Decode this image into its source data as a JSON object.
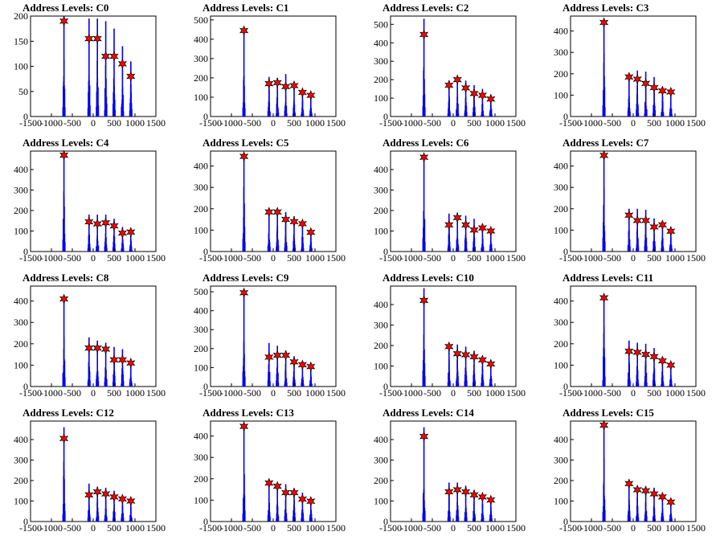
{
  "chart_data": [
    {
      "type": "bar",
      "title": "Address Levels: C0",
      "xlim": [
        -1500,
        1500
      ],
      "ylim": [
        0,
        200
      ],
      "xticks": [
        -1500,
        -1000,
        -500,
        0,
        500,
        1000,
        1500
      ],
      "yticks": [
        0,
        50,
        100,
        150,
        200
      ],
      "x": [
        -700,
        -100,
        100,
        300,
        500,
        700,
        900
      ],
      "values": [
        190,
        155,
        155,
        120,
        120,
        105,
        80
      ],
      "spikes": [
        {
          "x": -700,
          "y": 200
        },
        {
          "x": -100,
          "y": 195
        },
        {
          "x": 100,
          "y": 195
        },
        {
          "x": 300,
          "y": 190
        },
        {
          "x": 500,
          "y": 175
        },
        {
          "x": 700,
          "y": 140
        },
        {
          "x": 900,
          "y": 110
        }
      ]
    },
    {
      "type": "bar",
      "title": "Address Levels: C1",
      "xlim": [
        -1500,
        1500
      ],
      "ylim": [
        0,
        520
      ],
      "xticks": [
        -1500,
        -1000,
        -500,
        0,
        500,
        1000,
        1500
      ],
      "yticks": [
        0,
        100,
        200,
        300,
        400,
        500
      ],
      "x": [
        -700,
        -100,
        100,
        300,
        500,
        700,
        900
      ],
      "values": [
        445,
        170,
        175,
        155,
        160,
        125,
        110
      ],
      "spikes": [
        {
          "x": -700,
          "y": 460
        },
        {
          "x": -100,
          "y": 205
        },
        {
          "x": 100,
          "y": 200
        },
        {
          "x": 300,
          "y": 220
        },
        {
          "x": 500,
          "y": 165
        },
        {
          "x": 700,
          "y": 135
        },
        {
          "x": 900,
          "y": 120
        }
      ]
    },
    {
      "type": "bar",
      "title": "Address Levels: C2",
      "xlim": [
        -1500,
        1500
      ],
      "ylim": [
        0,
        545
      ],
      "xticks": [
        -1500,
        -1000,
        -500,
        0,
        500,
        1000,
        1500
      ],
      "yticks": [
        0,
        100,
        200,
        300,
        400,
        500
      ],
      "x": [
        -700,
        -100,
        100,
        300,
        500,
        700,
        900
      ],
      "values": [
        445,
        170,
        200,
        155,
        125,
        115,
        95
      ],
      "spikes": [
        {
          "x": -700,
          "y": 530
        },
        {
          "x": -100,
          "y": 195
        },
        {
          "x": 100,
          "y": 215
        },
        {
          "x": 300,
          "y": 195
        },
        {
          "x": 500,
          "y": 170
        },
        {
          "x": 700,
          "y": 150
        },
        {
          "x": 900,
          "y": 120
        }
      ]
    },
    {
      "type": "bar",
      "title": "Address Levels: C3",
      "xlim": [
        -1500,
        1500
      ],
      "ylim": [
        0,
        470
      ],
      "xticks": [
        -1500,
        -1000,
        -500,
        0,
        500,
        1000,
        1500
      ],
      "yticks": [
        0,
        100,
        200,
        300,
        400
      ],
      "x": [
        -700,
        -100,
        100,
        300,
        500,
        700,
        900
      ],
      "values": [
        440,
        185,
        175,
        155,
        135,
        120,
        115
      ],
      "spikes": [
        {
          "x": -700,
          "y": 450
        },
        {
          "x": -100,
          "y": 200
        },
        {
          "x": 100,
          "y": 215
        },
        {
          "x": 300,
          "y": 210
        },
        {
          "x": 500,
          "y": 185
        },
        {
          "x": 700,
          "y": 140
        },
        {
          "x": 900,
          "y": 130
        }
      ]
    },
    {
      "type": "bar",
      "title": "Address Levels: C4",
      "xlim": [
        -1500,
        1500
      ],
      "ylim": [
        0,
        490
      ],
      "xticks": [
        -1500,
        -1000,
        -500,
        0,
        500,
        1000,
        1500
      ],
      "yticks": [
        0,
        100,
        200,
        300,
        400
      ],
      "x": [
        -700,
        -100,
        100,
        300,
        500,
        700,
        900
      ],
      "values": [
        470,
        145,
        135,
        140,
        125,
        90,
        95
      ],
      "spikes": [
        {
          "x": -700,
          "y": 480
        },
        {
          "x": -100,
          "y": 180
        },
        {
          "x": 100,
          "y": 180
        },
        {
          "x": 300,
          "y": 180
        },
        {
          "x": 500,
          "y": 160
        },
        {
          "x": 700,
          "y": 120
        },
        {
          "x": 900,
          "y": 110
        }
      ]
    },
    {
      "type": "bar",
      "title": "Address Levels: C5",
      "xlim": [
        -1500,
        1500
      ],
      "ylim": [
        0,
        470
      ],
      "xticks": [
        -1500,
        -1000,
        -500,
        0,
        500,
        1000,
        1500
      ],
      "yticks": [
        0,
        100,
        200,
        300,
        400
      ],
      "x": [
        -700,
        -100,
        100,
        300,
        500,
        700,
        900
      ],
      "values": [
        445,
        185,
        185,
        150,
        140,
        130,
        90
      ],
      "spikes": [
        {
          "x": -700,
          "y": 455
        },
        {
          "x": -100,
          "y": 190
        },
        {
          "x": 100,
          "y": 195
        },
        {
          "x": 300,
          "y": 185
        },
        {
          "x": 500,
          "y": 165
        },
        {
          "x": 700,
          "y": 145
        },
        {
          "x": 900,
          "y": 105
        }
      ]
    },
    {
      "type": "bar",
      "title": "Address Levels: C6",
      "xlim": [
        -1500,
        1500
      ],
      "ylim": [
        0,
        490
      ],
      "xticks": [
        -1500,
        -1000,
        -500,
        0,
        500,
        1000,
        1500
      ],
      "yticks": [
        0,
        100,
        200,
        300,
        400
      ],
      "x": [
        -700,
        -100,
        100,
        300,
        500,
        700,
        900
      ],
      "values": [
        460,
        130,
        165,
        130,
        105,
        115,
        100
      ],
      "spikes": [
        {
          "x": -700,
          "y": 475
        },
        {
          "x": -100,
          "y": 185
        },
        {
          "x": 100,
          "y": 190
        },
        {
          "x": 300,
          "y": 175
        },
        {
          "x": 500,
          "y": 160
        },
        {
          "x": 700,
          "y": 135
        },
        {
          "x": 900,
          "y": 115
        }
      ]
    },
    {
      "type": "bar",
      "title": "Address Levels: C7",
      "xlim": [
        -1500,
        1500
      ],
      "ylim": [
        0,
        470
      ],
      "xticks": [
        -1500,
        -1000,
        -500,
        0,
        500,
        1000,
        1500
      ],
      "yticks": [
        0,
        100,
        200,
        300,
        400
      ],
      "x": [
        -700,
        -100,
        100,
        300,
        500,
        700,
        900
      ],
      "values": [
        450,
        170,
        145,
        145,
        115,
        125,
        95
      ],
      "spikes": [
        {
          "x": -700,
          "y": 455
        },
        {
          "x": -100,
          "y": 200
        },
        {
          "x": 100,
          "y": 200
        },
        {
          "x": 300,
          "y": 195
        },
        {
          "x": 500,
          "y": 155
        },
        {
          "x": 700,
          "y": 145
        },
        {
          "x": 900,
          "y": 115
        }
      ]
    },
    {
      "type": "bar",
      "title": "Address Levels: C8",
      "xlim": [
        -1500,
        1500
      ],
      "ylim": [
        0,
        470
      ],
      "xticks": [
        -1500,
        -1000,
        -500,
        0,
        500,
        1000,
        1500
      ],
      "yticks": [
        0,
        100,
        200,
        300,
        400
      ],
      "x": [
        -700,
        -100,
        100,
        300,
        500,
        700,
        900
      ],
      "values": [
        410,
        180,
        180,
        175,
        125,
        125,
        110
      ],
      "spikes": [
        {
          "x": -700,
          "y": 420
        },
        {
          "x": -100,
          "y": 230
        },
        {
          "x": 100,
          "y": 215
        },
        {
          "x": 300,
          "y": 205
        },
        {
          "x": 500,
          "y": 185
        },
        {
          "x": 700,
          "y": 175
        },
        {
          "x": 900,
          "y": 130
        }
      ]
    },
    {
      "type": "bar",
      "title": "Address Levels: C9",
      "xlim": [
        -1500,
        1500
      ],
      "ylim": [
        0,
        530
      ],
      "xticks": [
        -1500,
        -1000,
        -500,
        0,
        500,
        1000,
        1500
      ],
      "yticks": [
        0,
        100,
        200,
        300,
        400,
        500
      ],
      "x": [
        -700,
        -100,
        100,
        300,
        500,
        700,
        900
      ],
      "values": [
        495,
        155,
        165,
        165,
        130,
        115,
        105
      ],
      "spikes": [
        {
          "x": -700,
          "y": 505
        },
        {
          "x": -100,
          "y": 230
        },
        {
          "x": 100,
          "y": 215
        },
        {
          "x": 300,
          "y": 190
        },
        {
          "x": 500,
          "y": 160
        },
        {
          "x": 700,
          "y": 130
        },
        {
          "x": 900,
          "y": 115
        }
      ]
    },
    {
      "type": "bar",
      "title": "Address Levels: C10",
      "xlim": [
        -1500,
        1500
      ],
      "ylim": [
        0,
        490
      ],
      "xticks": [
        -1500,
        -1000,
        -500,
        0,
        500,
        1000,
        1500
      ],
      "yticks": [
        0,
        100,
        200,
        300,
        400
      ],
      "x": [
        -700,
        -100,
        100,
        300,
        500,
        700,
        900
      ],
      "values": [
        420,
        195,
        160,
        155,
        145,
        130,
        110
      ],
      "spikes": [
        {
          "x": -700,
          "y": 480
        },
        {
          "x": -100,
          "y": 210
        },
        {
          "x": 100,
          "y": 205
        },
        {
          "x": 300,
          "y": 195
        },
        {
          "x": 500,
          "y": 175
        },
        {
          "x": 700,
          "y": 150
        },
        {
          "x": 900,
          "y": 130
        }
      ]
    },
    {
      "type": "bar",
      "title": "Address Levels: C11",
      "xlim": [
        -1500,
        1500
      ],
      "ylim": [
        0,
        470
      ],
      "xticks": [
        -1500,
        -1000,
        -500,
        0,
        500,
        1000,
        1500
      ],
      "yticks": [
        0,
        100,
        200,
        300,
        400
      ],
      "x": [
        -700,
        -100,
        100,
        300,
        500,
        700,
        900
      ],
      "values": [
        415,
        165,
        160,
        150,
        140,
        120,
        100
      ],
      "spikes": [
        {
          "x": -700,
          "y": 430
        },
        {
          "x": -100,
          "y": 215
        },
        {
          "x": 100,
          "y": 205
        },
        {
          "x": 300,
          "y": 200
        },
        {
          "x": 500,
          "y": 180
        },
        {
          "x": 700,
          "y": 140
        },
        {
          "x": 900,
          "y": 115
        }
      ]
    },
    {
      "type": "bar",
      "title": "Address Levels: C12",
      "xlim": [
        -1500,
        1500
      ],
      "ylim": [
        0,
        490
      ],
      "xticks": [
        -1500,
        -1000,
        -500,
        0,
        500,
        1000,
        1500
      ],
      "yticks": [
        0,
        100,
        200,
        300,
        400
      ],
      "x": [
        -700,
        -100,
        100,
        300,
        500,
        700,
        900
      ],
      "values": [
        405,
        130,
        145,
        135,
        120,
        110,
        100
      ],
      "spikes": [
        {
          "x": -700,
          "y": 460
        },
        {
          "x": -100,
          "y": 185
        },
        {
          "x": 100,
          "y": 170
        },
        {
          "x": 300,
          "y": 165
        },
        {
          "x": 500,
          "y": 150
        },
        {
          "x": 700,
          "y": 125
        },
        {
          "x": 900,
          "y": 110
        }
      ]
    },
    {
      "type": "bar",
      "title": "Address Levels: C13",
      "xlim": [
        -1500,
        1500
      ],
      "ylim": [
        0,
        470
      ],
      "xticks": [
        -1500,
        -1000,
        -500,
        0,
        500,
        1000,
        1500
      ],
      "yticks": [
        0,
        100,
        200,
        300,
        400
      ],
      "x": [
        -700,
        -100,
        100,
        300,
        500,
        700,
        900
      ],
      "values": [
        445,
        180,
        165,
        135,
        135,
        105,
        95
      ],
      "spikes": [
        {
          "x": -700,
          "y": 455
        },
        {
          "x": -100,
          "y": 190
        },
        {
          "x": 100,
          "y": 175
        },
        {
          "x": 300,
          "y": 175
        },
        {
          "x": 500,
          "y": 155
        },
        {
          "x": 700,
          "y": 135
        },
        {
          "x": 900,
          "y": 110
        }
      ]
    },
    {
      "type": "bar",
      "title": "Address Levels: C14",
      "xlim": [
        -1500,
        1500
      ],
      "ylim": [
        0,
        490
      ],
      "xticks": [
        -1500,
        -1000,
        -500,
        0,
        500,
        1000,
        1500
      ],
      "yticks": [
        0,
        100,
        200,
        300,
        400
      ],
      "x": [
        -700,
        -100,
        100,
        300,
        500,
        700,
        900
      ],
      "values": [
        415,
        145,
        155,
        145,
        130,
        120,
        105
      ],
      "spikes": [
        {
          "x": -700,
          "y": 460
        },
        {
          "x": -100,
          "y": 190
        },
        {
          "x": 100,
          "y": 190
        },
        {
          "x": 300,
          "y": 175
        },
        {
          "x": 500,
          "y": 155
        },
        {
          "x": 700,
          "y": 135
        },
        {
          "x": 900,
          "y": 115
        }
      ]
    },
    {
      "type": "bar",
      "title": "Address Levels: C15",
      "xlim": [
        -1500,
        1500
      ],
      "ylim": [
        0,
        490
      ],
      "xticks": [
        -1500,
        -1000,
        -500,
        0,
        500,
        1000,
        1500
      ],
      "yticks": [
        0,
        100,
        200,
        300,
        400
      ],
      "x": [
        -700,
        -100,
        100,
        300,
        500,
        700,
        900
      ],
      "values": [
        470,
        185,
        155,
        150,
        135,
        120,
        95
      ],
      "spikes": [
        {
          "x": -700,
          "y": 485
        },
        {
          "x": -100,
          "y": 190
        },
        {
          "x": 100,
          "y": 175
        },
        {
          "x": 300,
          "y": 170
        },
        {
          "x": 500,
          "y": 165
        },
        {
          "x": 700,
          "y": 140
        },
        {
          "x": 900,
          "y": 110
        }
      ]
    }
  ],
  "colors": {
    "histogram": "#0000ff",
    "spike_dark": "#000000",
    "marker": "#ff0000",
    "marker_outline": "#000000",
    "axis": "#000000",
    "background": "#ffffff"
  }
}
